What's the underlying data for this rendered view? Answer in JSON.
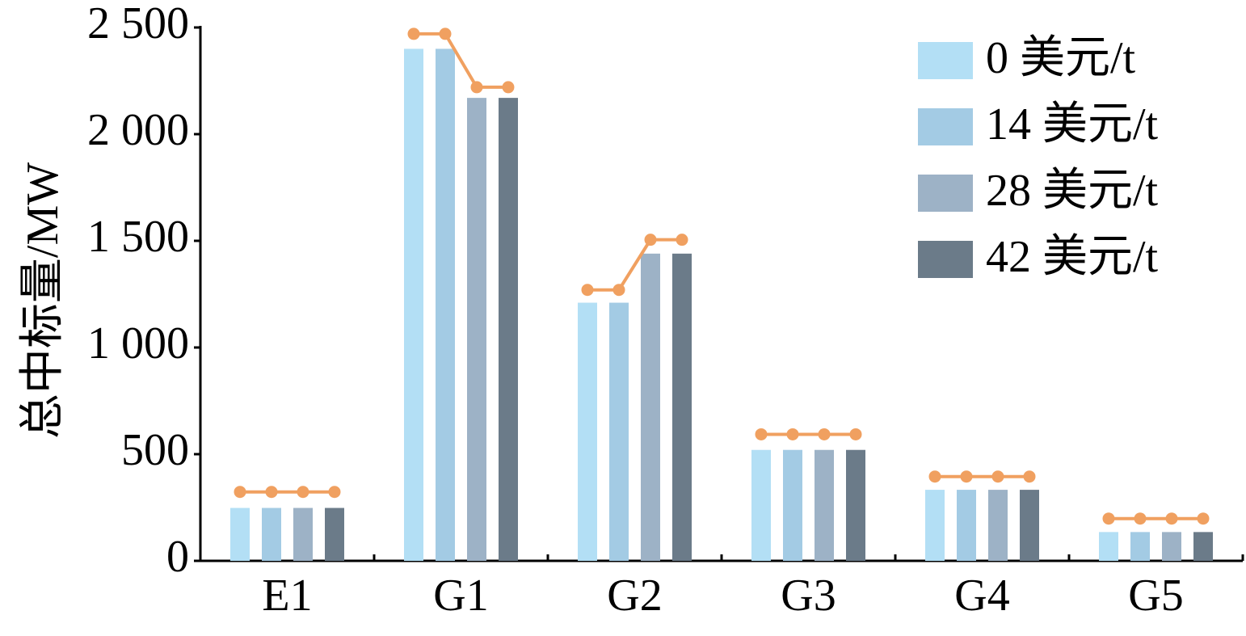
{
  "chart_data": {
    "type": "bar",
    "ylabel": "总中标量/MW",
    "xlabel": "",
    "ylim": [
      0,
      2500
    ],
    "yticks": [
      0,
      500,
      1000,
      1500,
      2000,
      2500
    ],
    "ytick_labels": [
      "0",
      "500",
      "1 000",
      "1 500",
      "2 000",
      "2 500"
    ],
    "categories": [
      "E1",
      "G1",
      "G2",
      "G3",
      "G4",
      "G5"
    ],
    "series": [
      {
        "name": "0 美元/t",
        "color": "#b3dff5",
        "values": [
          248,
          2400,
          1210,
          520,
          333,
          135
        ]
      },
      {
        "name": "14 美元/t",
        "color": "#a3cbe4",
        "values": [
          248,
          2400,
          1210,
          520,
          333,
          135
        ]
      },
      {
        "name": "28 美元/t",
        "color": "#9db2c6",
        "values": [
          248,
          2170,
          1440,
          520,
          333,
          135
        ]
      },
      {
        "name": "42 美元/t",
        "color": "#6b7b89",
        "values": [
          248,
          2170,
          1440,
          520,
          333,
          135
        ]
      }
    ],
    "overlay_line": {
      "color": "#f0a060",
      "values": [
        [
          323,
          323,
          323,
          323
        ],
        [
          2470,
          2470,
          2220,
          2220
        ],
        [
          1270,
          1270,
          1505,
          1505
        ],
        [
          593,
          593,
          593,
          593
        ],
        [
          395,
          395,
          395,
          395
        ],
        [
          198,
          198,
          198,
          198
        ]
      ]
    },
    "legend_position": "top-right",
    "grid": false
  }
}
